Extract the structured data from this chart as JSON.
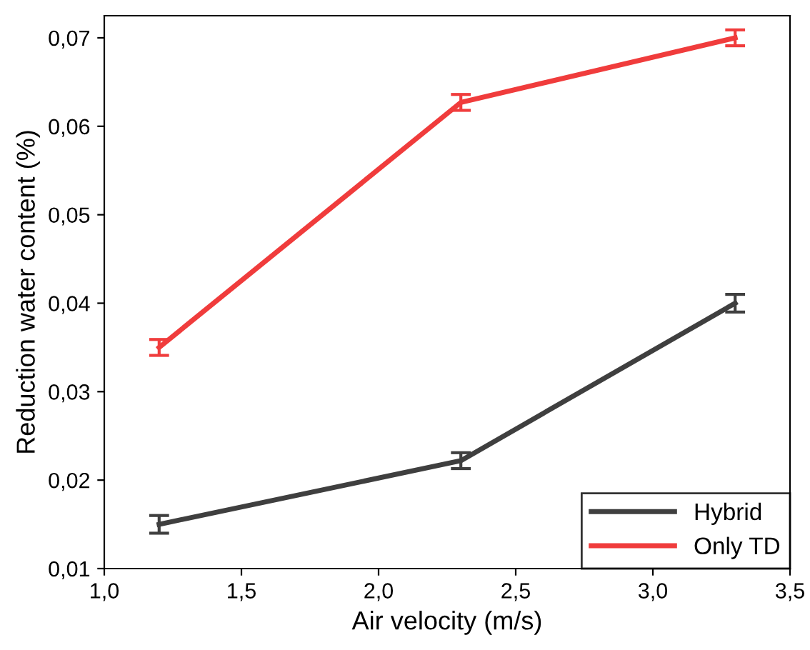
{
  "chart_data": {
    "type": "line",
    "xlabel": "Air velocity (m/s)",
    "ylabel": "Reduction water content (%)",
    "x": [
      1.2,
      2.3,
      3.3
    ],
    "series": [
      {
        "name": "Hybrid",
        "color": "#3f3f3f",
        "values": [
          0.015,
          0.0222,
          0.04
        ],
        "errors": [
          0.001,
          0.0009,
          0.001
        ]
      },
      {
        "name": "Only TD",
        "color": "#f03c3c",
        "values": [
          0.035,
          0.0627,
          0.07
        ],
        "errors": [
          0.0009,
          0.0009,
          0.0009
        ]
      }
    ],
    "xlim": [
      1.0,
      3.5
    ],
    "xticks": [
      {
        "value": 1.0,
        "label": "1,0"
      },
      {
        "value": 1.5,
        "label": "1,5"
      },
      {
        "value": 2.0,
        "label": "2,0"
      },
      {
        "value": 2.5,
        "label": "2,5"
      },
      {
        "value": 3.0,
        "label": "3,0"
      },
      {
        "value": 3.5,
        "label": "3,5"
      }
    ],
    "ylim": [
      0.01,
      0.0725
    ],
    "yticks": [
      {
        "value": 0.01,
        "label": "0,01"
      },
      {
        "value": 0.02,
        "label": "0,02"
      },
      {
        "value": 0.03,
        "label": "0,03"
      },
      {
        "value": 0.04,
        "label": "0,04"
      },
      {
        "value": 0.05,
        "label": "0,05"
      },
      {
        "value": 0.06,
        "label": "0,06"
      },
      {
        "value": 0.07,
        "label": "0,07"
      }
    ],
    "legend": "bottom right",
    "grid": false,
    "marker": "none",
    "line_style": "solid"
  }
}
